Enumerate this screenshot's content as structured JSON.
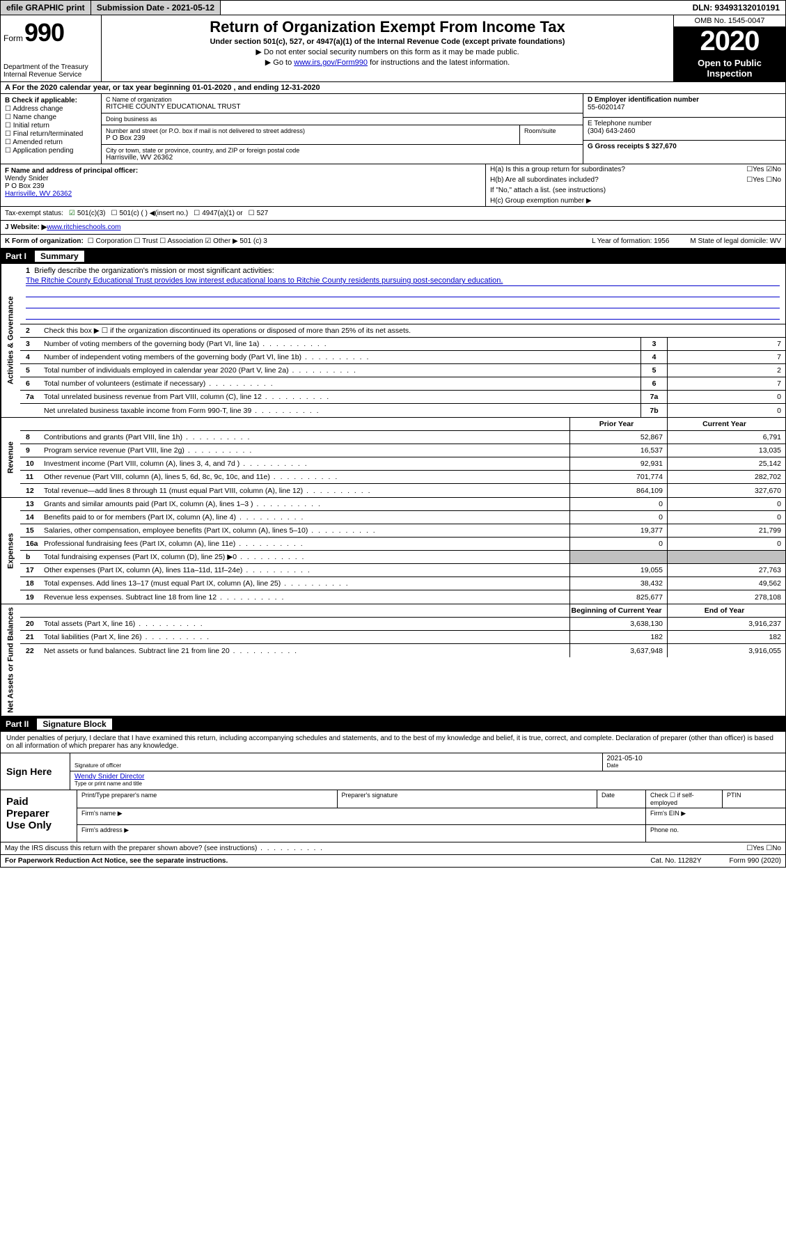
{
  "top": {
    "efile": "efile GRAPHIC print",
    "submission": "Submission Date - 2021-05-12",
    "dln": "DLN: 93493132010191"
  },
  "header": {
    "form_word": "Form",
    "form_num": "990",
    "dept": "Department of the Treasury\nInternal Revenue Service",
    "title": "Return of Organization Exempt From Income Tax",
    "subtitle": "Under section 501(c), 527, or 4947(a)(1) of the Internal Revenue Code (except private foundations)",
    "line2": "▶ Do not enter social security numbers on this form as it may be made public.",
    "line3_pre": "▶ Go to ",
    "line3_link": "www.irs.gov/Form990",
    "line3_post": " for instructions and the latest information.",
    "omb": "OMB No. 1545-0047",
    "year": "2020",
    "open": "Open to Public Inspection"
  },
  "rowA": "A   For the 2020 calendar year, or tax year beginning 01-01-2020    , and ending 12-31-2020",
  "colB": {
    "label": "B Check if applicable:",
    "opts": [
      "Address change",
      "Name change",
      "Initial return",
      "Final return/terminated",
      "Amended return",
      "Application pending"
    ]
  },
  "colC": {
    "name_lbl": "C Name of organization",
    "name": "RITCHIE COUNTY EDUCATIONAL TRUST",
    "dba_lbl": "Doing business as",
    "addr_lbl": "Number and street (or P.O. box if mail is not delivered to street address)",
    "addr": "P O Box 239",
    "suite_lbl": "Room/suite",
    "city_lbl": "City or town, state or province, country, and ZIP or foreign postal code",
    "city": "Harrisville, WV  26362"
  },
  "colD": {
    "ein_lbl": "D Employer identification number",
    "ein": "55-6020147",
    "phone_lbl": "E Telephone number",
    "phone": "(304) 643-2460",
    "gross_lbl": "G Gross receipts $ 327,670"
  },
  "F": {
    "lbl": "F  Name and address of principal officer:",
    "name": "Wendy Snider",
    "addr": "P O Box 239",
    "city": "Harrisville, WV  26362"
  },
  "H": {
    "a": "H(a)  Is this a group return for subordinates?",
    "a_ans": "☐Yes ☑No",
    "b": "H(b)  Are all subordinates included?",
    "b_ans": "☐Yes ☐No",
    "b_note": "If \"No,\" attach a list. (see instructions)",
    "c": "H(c)  Group exemption number ▶"
  },
  "status": {
    "lbl": "Tax-exempt status:",
    "o1": "501(c)(3)",
    "o2": "501(c) (  ) ◀(insert no.)",
    "o3": "4947(a)(1) or",
    "o4": "527"
  },
  "website": {
    "lbl": "J  Website: ▶",
    "val": "  www.ritchieschools.com"
  },
  "K": {
    "lbl": "K Form of organization:",
    "opts": "☐ Corporation  ☐ Trust  ☐ Association  ☑ Other ▶ 501 (c) 3",
    "L": "L Year of formation: 1956",
    "M": "M State of legal domicile: WV"
  },
  "partI": {
    "num": "Part I",
    "title": "Summary"
  },
  "mission": {
    "num": "1",
    "lbl": "Briefly describe the organization's mission or most significant activities:",
    "text": "The Ritchie County Educational Trust provides low interest educational loans to Ritchie County residents pursuing post-secondary education."
  },
  "line2chk": {
    "num": "2",
    "text": "Check this box ▶ ☐  if the organization discontinued its operations or disposed of more than 25% of its net assets."
  },
  "govLines": [
    {
      "n": "3",
      "d": "Number of voting members of the governing body (Part VI, line 1a)",
      "b": "3",
      "v": "7"
    },
    {
      "n": "4",
      "d": "Number of independent voting members of the governing body (Part VI, line 1b)",
      "b": "4",
      "v": "7"
    },
    {
      "n": "5",
      "d": "Total number of individuals employed in calendar year 2020 (Part V, line 2a)",
      "b": "5",
      "v": "2"
    },
    {
      "n": "6",
      "d": "Total number of volunteers (estimate if necessary)",
      "b": "6",
      "v": "7"
    },
    {
      "n": "7a",
      "d": "Total unrelated business revenue from Part VIII, column (C), line 12",
      "b": "7a",
      "v": "0"
    },
    {
      "n": "",
      "d": "Net unrelated business taxable income from Form 990-T, line 39",
      "b": "7b",
      "v": "0"
    }
  ],
  "revHeader": {
    "prior": "Prior Year",
    "curr": "Current Year"
  },
  "revLines": [
    {
      "n": "8",
      "d": "Contributions and grants (Part VIII, line 1h)",
      "p": "52,867",
      "c": "6,791"
    },
    {
      "n": "9",
      "d": "Program service revenue (Part VIII, line 2g)",
      "p": "16,537",
      "c": "13,035"
    },
    {
      "n": "10",
      "d": "Investment income (Part VIII, column (A), lines 3, 4, and 7d )",
      "p": "92,931",
      "c": "25,142"
    },
    {
      "n": "11",
      "d": "Other revenue (Part VIII, column (A), lines 5, 6d, 8c, 9c, 10c, and 11e)",
      "p": "701,774",
      "c": "282,702"
    },
    {
      "n": "12",
      "d": "Total revenue—add lines 8 through 11 (must equal Part VIII, column (A), line 12)",
      "p": "864,109",
      "c": "327,670"
    }
  ],
  "expLines": [
    {
      "n": "13",
      "d": "Grants and similar amounts paid (Part IX, column (A), lines 1–3 )",
      "p": "0",
      "c": "0"
    },
    {
      "n": "14",
      "d": "Benefits paid to or for members (Part IX, column (A), line 4)",
      "p": "0",
      "c": "0"
    },
    {
      "n": "15",
      "d": "Salaries, other compensation, employee benefits (Part IX, column (A), lines 5–10)",
      "p": "19,377",
      "c": "21,799"
    },
    {
      "n": "16a",
      "d": "Professional fundraising fees (Part IX, column (A), line 11e)",
      "p": "0",
      "c": "0"
    },
    {
      "n": "b",
      "d": "Total fundraising expenses (Part IX, column (D), line 25) ▶0",
      "p": "",
      "c": "",
      "shade": true
    },
    {
      "n": "17",
      "d": "Other expenses (Part IX, column (A), lines 11a–11d, 11f–24e)",
      "p": "19,055",
      "c": "27,763"
    },
    {
      "n": "18",
      "d": "Total expenses. Add lines 13–17 (must equal Part IX, column (A), line 25)",
      "p": "38,432",
      "c": "49,562"
    },
    {
      "n": "19",
      "d": "Revenue less expenses. Subtract line 18 from line 12",
      "p": "825,677",
      "c": "278,108"
    }
  ],
  "netHeader": {
    "prior": "Beginning of Current Year",
    "curr": "End of Year"
  },
  "netLines": [
    {
      "n": "20",
      "d": "Total assets (Part X, line 16)",
      "p": "3,638,130",
      "c": "3,916,237"
    },
    {
      "n": "21",
      "d": "Total liabilities (Part X, line 26)",
      "p": "182",
      "c": "182"
    },
    {
      "n": "22",
      "d": "Net assets or fund balances. Subtract line 21 from line 20",
      "p": "3,637,948",
      "c": "3,916,055"
    }
  ],
  "partII": {
    "num": "Part II",
    "title": "Signature Block"
  },
  "sig": {
    "intro": "Under penalties of perjury, I declare that I have examined this return, including accompanying schedules and statements, and to the best of my knowledge and belief, it is true, correct, and complete. Declaration of preparer (other than officer) is based on all information of which preparer has any knowledge.",
    "here": "Sign Here",
    "sig_lbl": "Signature of officer",
    "date": "2021-05-10",
    "date_lbl": "Date",
    "name": "Wendy Snider Director",
    "name_lbl": "Type or print name and title"
  },
  "paid": {
    "lbl": "Paid Preparer Use Only",
    "h1": "Print/Type preparer's name",
    "h2": "Preparer's signature",
    "h3": "Date",
    "h4": "Check ☐ if self-employed",
    "h5": "PTIN",
    "firm_name": "Firm's name    ▶",
    "firm_ein": "Firm's EIN ▶",
    "firm_addr": "Firm's address ▶",
    "phone": "Phone no."
  },
  "discuss": {
    "q": "May the IRS discuss this return with the preparer shown above? (see instructions)",
    "ans": "☐Yes   ☐No"
  },
  "footer": {
    "left": "For Paperwork Reduction Act Notice, see the separate instructions.",
    "mid": "Cat. No. 11282Y",
    "right": "Form 990 (2020)"
  },
  "vlabels": {
    "gov": "Activities & Governance",
    "rev": "Revenue",
    "exp": "Expenses",
    "net": "Net Assets or Fund Balances"
  }
}
